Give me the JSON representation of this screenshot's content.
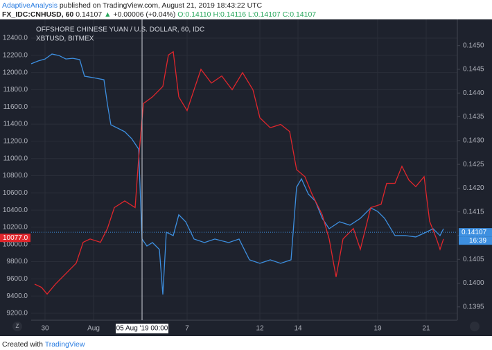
{
  "header": {
    "author": "AdaptiveAnalysis",
    "published": "published on TradingView.com, August 21, 2019 18:43:22 UTC",
    "symbol": "FX_IDC:CNHUSD, 60",
    "last": "0.14107",
    "change": "+0.00006 (+0.04%)",
    "ohlc": [
      "O:0.14110",
      "H:0.14116",
      "L:0.14107",
      "C:0.14107"
    ]
  },
  "chart_data": {
    "type": "line",
    "series": [
      {
        "name": "XBTUSD, BITMEX",
        "color": "#3d8fe0",
        "axis": "y",
        "x": [
          0,
          2,
          4,
          6,
          8,
          10,
          12,
          14,
          15.4,
          18,
          21,
          22,
          23,
          25,
          27,
          29,
          31,
          32,
          33.4,
          35,
          37,
          38,
          39,
          41,
          42.6,
          44.6,
          47,
          50,
          53,
          57,
          60,
          63,
          66,
          69,
          72,
          75,
          76.6,
          78,
          80,
          82,
          84,
          86,
          89,
          92,
          95,
          98,
          100,
          102,
          105,
          108,
          111,
          114,
          116,
          118,
          119
        ],
        "values": [
          12102,
          12134,
          12158,
          12215,
          12198,
          12158,
          12166,
          12150,
          11957,
          11940,
          11916,
          11634,
          11392,
          11352,
          11312,
          11231,
          11110,
          10063,
          9982,
          10022,
          9942,
          9418,
          10143,
          10103,
          10345,
          10264,
          10063,
          10022,
          10063,
          10022,
          10063,
          9821,
          9780,
          9821,
          9780,
          9821,
          10667,
          10764,
          10586,
          10506,
          10304,
          10183,
          10264,
          10224,
          10304,
          10425,
          10385,
          10304,
          10103,
          10103,
          10087,
          10143,
          10183,
          10103,
          10183
        ]
      },
      {
        "name": "OFFSHORE CHINESE YUAN / U.S. DOLLAR, 60, IDC",
        "color": "#e0262c",
        "axis": "y2",
        "x": [
          1,
          3,
          4.6,
          7,
          10,
          13,
          15,
          17,
          20,
          22,
          24,
          27,
          30,
          31,
          32.4,
          35,
          38,
          39.6,
          41,
          42.6,
          45,
          47,
          49,
          52,
          55,
          58,
          61,
          64,
          66,
          69,
          72,
          74.6,
          76.6,
          79,
          81,
          84,
          86,
          88,
          90,
          93,
          95,
          98,
          101,
          102.6,
          105,
          107,
          109,
          111,
          113.4,
          115,
          117,
          118,
          119
        ],
        "values": [
          0.13998,
          0.13991,
          0.13977,
          0.13998,
          0.1402,
          0.14042,
          0.14086,
          0.14093,
          0.14086,
          0.14115,
          0.14159,
          0.14173,
          0.14159,
          0.14261,
          0.14378,
          0.14392,
          0.14414,
          0.1448,
          0.14487,
          0.14392,
          0.14363,
          0.14407,
          0.1445,
          0.14421,
          0.14436,
          0.14407,
          0.14443,
          0.14407,
          0.14348,
          0.14327,
          0.14334,
          0.14319,
          0.14239,
          0.14224,
          0.14188,
          0.14144,
          0.14093,
          0.14013,
          0.14093,
          0.14115,
          0.14071,
          0.14159,
          0.14166,
          0.1421,
          0.1421,
          0.14246,
          0.14217,
          0.14203,
          0.14224,
          0.1413,
          0.14093,
          0.14071,
          0.14093
        ]
      }
    ],
    "xlim": [
      0,
      123
    ],
    "xticks": [
      {
        "value": 4,
        "label": "30"
      },
      {
        "value": 18,
        "label": "Aug"
      },
      {
        "value": 45,
        "label": "7"
      },
      {
        "value": 66,
        "label": "12"
      },
      {
        "value": 77,
        "label": "14"
      },
      {
        "value": 100,
        "label": "19"
      },
      {
        "value": 114,
        "label": "21"
      }
    ],
    "ylim": [
      9119,
      12618
    ],
    "yticks": [
      {
        "value": 9200,
        "label": "9200.0"
      },
      {
        "value": 9400,
        "label": "9400.0"
      },
      {
        "value": 9600,
        "label": "9600.0"
      },
      {
        "value": 9800,
        "label": "9800.0"
      },
      {
        "value": 10000,
        "label": "10000.0"
      },
      {
        "value": 10200,
        "label": "10200.0"
      },
      {
        "value": 10400,
        "label": "10400.0"
      },
      {
        "value": 10600,
        "label": "10600.0"
      },
      {
        "value": 10800,
        "label": "10800.0"
      },
      {
        "value": 11000,
        "label": "11000.0"
      },
      {
        "value": 11200,
        "label": "11200.0"
      },
      {
        "value": 11400,
        "label": "11400.0"
      },
      {
        "value": 11600,
        "label": "11600.0"
      },
      {
        "value": 11800,
        "label": "11800.0"
      },
      {
        "value": 12000,
        "label": "12000.0"
      },
      {
        "value": 12200,
        "label": "12200.0"
      },
      {
        "value": 12400,
        "label": "12400.0"
      }
    ],
    "y2lim": [
      0.13922,
      0.14555
    ],
    "y2ticks": [
      0.1395,
      {
        "value": 0.14,
        "label": "0.1400"
      },
      0.1405,
      {
        "value": 0.141,
        "label": "0.1410"
      },
      0.1415,
      {
        "value": 0.142,
        "label": "0.1420"
      },
      0.1425,
      {
        "value": 0.143,
        "label": "0.1430"
      },
      0.1435,
      {
        "value": 0.144,
        "label": "0.1440"
      },
      0.1445,
      {
        "value": 0.145,
        "label": "0.1450"
      }
    ],
    "grid": true,
    "markers": [
      {
        "value": 10077,
        "label": "10077.0",
        "axis": "y",
        "color": "#e0262c"
      },
      {
        "value": 0.14107,
        "label": "0.14107",
        "axis": "y2",
        "color": "#3d8fe0"
      }
    ],
    "countdown": "16:39",
    "crosshair": {
      "x": 32,
      "label": "05 Aug '19  00:00"
    }
  },
  "footer": {
    "text": "Created with",
    "brand": "TradingView"
  }
}
